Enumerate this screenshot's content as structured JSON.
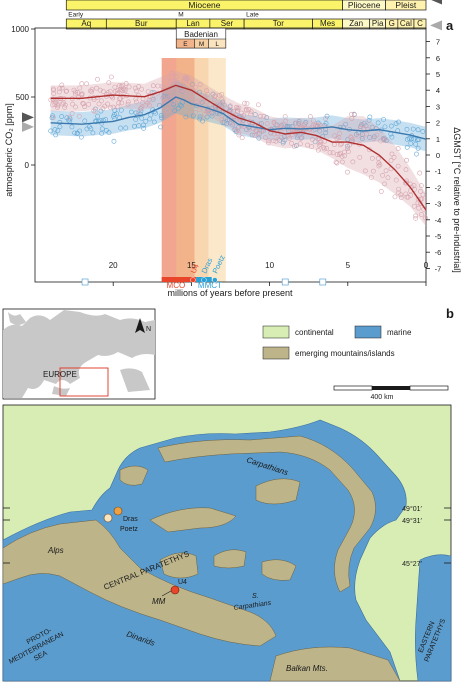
{
  "panel_a": {
    "label": "a",
    "epochs": [
      {
        "name": "Miocene",
        "start": 23.0,
        "end": 5.33,
        "color": "#fbf46a"
      },
      {
        "name": "Pliocene",
        "start": 5.33,
        "end": 2.58,
        "color": "#fdf9c6"
      },
      {
        "name": "Pleist",
        "start": 2.58,
        "end": 0.0,
        "color": "#fff2ae"
      }
    ],
    "subepochs": [
      {
        "name": "Early",
        "start": 23.0,
        "end": 15.97
      },
      {
        "name": "M",
        "start": 15.97,
        "end": 11.63
      },
      {
        "name": "Late",
        "start": 11.63,
        "end": 5.33
      }
    ],
    "stages": [
      {
        "name": "Aq",
        "start": 23.0,
        "end": 20.44
      },
      {
        "name": "Bur",
        "start": 20.44,
        "end": 15.97
      },
      {
        "name": "Lan",
        "start": 15.97,
        "end": 13.82
      },
      {
        "name": "Ser",
        "start": 13.82,
        "end": 11.63
      },
      {
        "name": "Tor",
        "start": 11.63,
        "end": 7.25
      },
      {
        "name": "Mes",
        "start": 7.25,
        "end": 5.33
      },
      {
        "name": "Zan",
        "start": 5.33,
        "end": 3.6
      },
      {
        "name": "Pia",
        "start": 3.6,
        "end": 2.58
      },
      {
        "name": "G",
        "start": 2.58,
        "end": 1.8
      },
      {
        "name": "Cal",
        "start": 1.8,
        "end": 0.77
      },
      {
        "name": "C",
        "start": 0.77,
        "end": 0.0
      }
    ],
    "badenian": {
      "name": "Badenian",
      "sub": [
        {
          "name": "E",
          "start": 15.97,
          "end": 14.8,
          "color": "#f2b48a"
        },
        {
          "name": "M",
          "start": 14.8,
          "end": 13.9,
          "color": "#f6cfa2"
        },
        {
          "name": "L",
          "start": 13.9,
          "end": 12.8,
          "color": "#fae3bf"
        }
      ]
    },
    "mco_band": {
      "start": 16.9,
      "end": 14.8,
      "color": "#ec8060"
    },
    "events": [
      {
        "name": "MCO",
        "start": 16.9,
        "end": 14.7,
        "color": "#e8452a"
      },
      {
        "name": "MMCT",
        "start": 14.7,
        "end": 13.7,
        "color": "#2aa0d5"
      }
    ],
    "sites": [
      {
        "name": "U4",
        "age": 14.9,
        "color": "#e8452a"
      },
      {
        "name": "Dras",
        "age": 14.2,
        "color": "#2aa0d5"
      },
      {
        "name": "Poetz",
        "age": 13.5,
        "color": "#2aa0d5"
      }
    ],
    "left_axis": {
      "label": "atmospheric CO₂ [ppm]",
      "ticks": [
        0,
        500,
        1000
      ]
    },
    "right_axis": {
      "label": "ΔGMST [°C relative to pre-industrial]",
      "ticks": [
        -7,
        -6,
        -5,
        -4,
        -3,
        -2,
        -1,
        0,
        1,
        2,
        3,
        4,
        5,
        6,
        7
      ]
    },
    "x_axis": {
      "label": "millions of years before present",
      "ticks": [
        20,
        15,
        10,
        5,
        0
      ]
    }
  },
  "chart_data": {
    "type": "line",
    "xlabel": "millions of years before present",
    "xlim": [
      25.0,
      0.0
    ],
    "series": [
      {
        "axis": "left",
        "color": "#3a78ad",
        "x": [
          24,
          22,
          20,
          19,
          18,
          17,
          16,
          15.5,
          15,
          14,
          13,
          12,
          11,
          10,
          9,
          8,
          7,
          6,
          5,
          4,
          3,
          2,
          1,
          0
        ],
        "y": [
          310,
          300,
          320,
          350,
          370,
          420,
          500,
          480,
          450,
          420,
          380,
          300,
          280,
          260,
          270,
          265,
          270,
          280,
          260,
          250,
          260,
          240,
          220,
          190
        ],
        "y_spread": [
          90,
          90,
          90,
          95,
          100,
          110,
          120,
          120,
          110,
          100,
          90,
          80,
          80,
          80,
          80,
          80,
          80,
          85,
          85,
          85,
          85,
          90,
          90,
          90
        ]
      },
      {
        "axis": "right",
        "color": "#b03030",
        "x": [
          24,
          22,
          20,
          18,
          17,
          16,
          15,
          14,
          13,
          12,
          11,
          10,
          9,
          8,
          7,
          6,
          5,
          4,
          3,
          2,
          1,
          0
        ],
        "y": [
          3.5,
          3.5,
          3.7,
          3.6,
          3.9,
          4.3,
          4.0,
          3.4,
          2.8,
          2.3,
          2.0,
          1.5,
          1.3,
          1.4,
          1.2,
          0.8,
          0.8,
          0.6,
          0.0,
          -0.9,
          -2.0,
          -3.4
        ],
        "y_spread": [
          0.8,
          0.8,
          0.8,
          0.8,
          0.9,
          0.9,
          0.9,
          0.9,
          0.9,
          0.9,
          0.9,
          0.9,
          0.9,
          0.9,
          0.9,
          1.0,
          1.6,
          1.8,
          1.7,
          1.5,
          1.2,
          1.0
        ]
      }
    ],
    "left_axis_markers": [
      {
        "value": 350,
        "color": "#555555"
      },
      {
        "value": 280,
        "color": "#aaaaaa"
      }
    ],
    "right_axis_markers": [
      {
        "value": 9.6,
        "color": "#555555"
      },
      {
        "value": 8.0,
        "color": "#aaaaaa"
      }
    ]
  },
  "panel_b": {
    "label": "b",
    "legend": [
      {
        "name": "continental",
        "color": "#d8edb4"
      },
      {
        "name": "marine",
        "color": "#5b9cce"
      },
      {
        "name": "emerging mountains/islands",
        "color": "#bdb48a"
      }
    ],
    "scale_label": "400 km",
    "inset_label": "EUROPE",
    "north": "N",
    "lat_labels": [
      "49°01′",
      "49°31′",
      "45°27′"
    ],
    "map_labels": {
      "alps": "Alps",
      "carpathians": "Carpathians",
      "central_paratethys": "CENTRAL PARATETHYS",
      "mm": "MM",
      "u4": "U4",
      "s": "S.",
      "s_carpathians": "Carpathians",
      "dinarids": "Dinarids",
      "proto_med": [
        "PROTO-",
        "MEDITERRANEAN",
        "SEA"
      ],
      "balkan": "Balkan Mts.",
      "eastern_paratethys": [
        "EASTERN",
        "PARATETHYS"
      ],
      "dras": "Dras",
      "poetz": "Poetz"
    }
  }
}
